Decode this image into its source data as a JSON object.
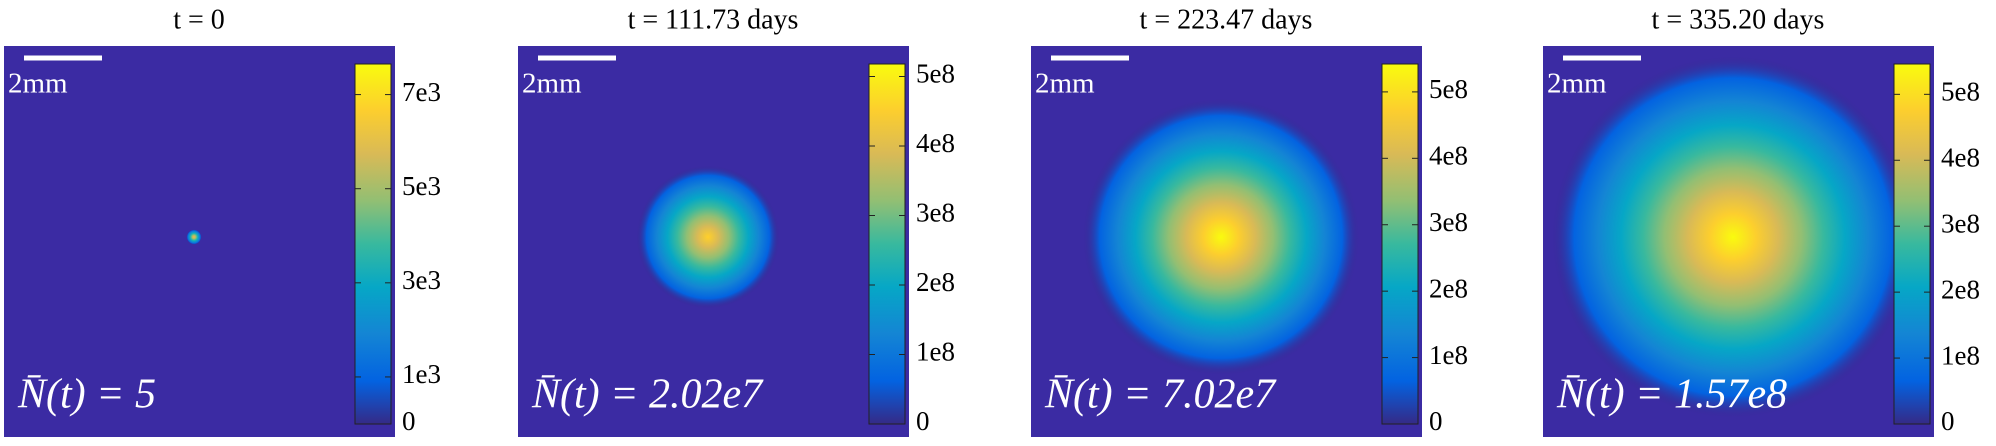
{
  "chart_data": [
    {
      "type": "heatmap",
      "title": "t = 0",
      "annotation": "N̄(t) = 5",
      "scale_bar": "2mm",
      "zlim": [
        0,
        7650
      ],
      "zticks": [
        0,
        {
          "value": 1000,
          "label": "1e3"
        },
        {
          "value": 3000,
          "label": "3e3"
        },
        {
          "value": 5000,
          "label": "5e3"
        },
        {
          "value": 7000,
          "label": "7e3"
        }
      ]
    },
    {
      "type": "heatmap",
      "title": "t = 111.73 days",
      "annotation": "N̄(t) = 2.02e7",
      "scale_bar": "2mm",
      "zlim": [
        0,
        518000000
      ],
      "zticks": [
        0,
        {
          "value": 100000000,
          "label": "1e8"
        },
        {
          "value": 200000000,
          "label": "2e8"
        },
        {
          "value": 300000000,
          "label": "3e8"
        },
        {
          "value": 400000000,
          "label": "4e8"
        },
        {
          "value": 500000000,
          "label": "5e8"
        }
      ]
    },
    {
      "type": "heatmap",
      "title": "t = 223.47 days",
      "annotation": "N̄(t) = 7.02e7",
      "scale_bar": "2mm",
      "zlim": [
        0,
        542000000
      ],
      "zticks": [
        0,
        {
          "value": 100000000,
          "label": "1e8"
        },
        {
          "value": 200000000,
          "label": "2e8"
        },
        {
          "value": 300000000,
          "label": "3e8"
        },
        {
          "value": 400000000,
          "label": "4e8"
        },
        {
          "value": 500000000,
          "label": "5e8"
        }
      ]
    },
    {
      "type": "heatmap",
      "title": "t = 335.20 days",
      "annotation": "N̄(t) = 1.57e8",
      "scale_bar": "2mm",
      "zlim": [
        0,
        546000000
      ],
      "zticks": [
        0,
        {
          "value": 100000000,
          "label": "1e8"
        },
        {
          "value": 200000000,
          "label": "2e8"
        },
        {
          "value": 300000000,
          "label": "3e8"
        },
        {
          "value": 400000000,
          "label": "4e8"
        },
        {
          "value": 500000000,
          "label": "5e8"
        }
      ]
    }
  ]
}
